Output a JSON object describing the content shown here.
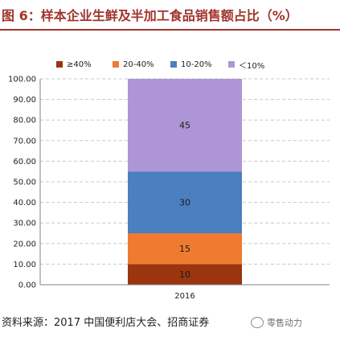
{
  "header": {
    "title": "图 6：样本企业生鲜及半加工食品销售额占比（%）"
  },
  "source": {
    "text": "资料来源：2017 中国便利店大会、招商证券"
  },
  "watermark": {
    "text": "零售动力",
    "icon": "wechat-icon"
  },
  "chart_data": {
    "type": "bar",
    "stacked": true,
    "title": "图 6：样本企业生鲜及半加工食品销售额占比（%）",
    "xlabel": "",
    "ylabel": "",
    "categories": [
      "2016"
    ],
    "ylim": [
      0,
      100
    ],
    "ytick_step": 10,
    "grid": true,
    "legend_position": "top",
    "series": [
      {
        "name": "≥40%",
        "values": [
          10
        ],
        "color": "#9b3510"
      },
      {
        "name": "20-40%",
        "values": [
          15
        ],
        "color": "#ee7b30"
      },
      {
        "name": "10-20%",
        "values": [
          30
        ],
        "color": "#4a7fc0"
      },
      {
        "name": "＜10%",
        "values": [
          45
        ],
        "color": "#ae96d6"
      }
    ],
    "data_labels": [
      "10",
      "15",
      "30",
      "45"
    ]
  }
}
